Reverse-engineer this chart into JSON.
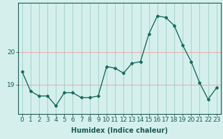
{
  "x": [
    0,
    1,
    2,
    3,
    4,
    5,
    6,
    7,
    8,
    9,
    10,
    11,
    12,
    13,
    14,
    15,
    16,
    17,
    18,
    19,
    20,
    21,
    22,
    23
  ],
  "y": [
    19.4,
    18.8,
    18.65,
    18.65,
    18.35,
    18.75,
    18.75,
    18.6,
    18.6,
    18.65,
    19.55,
    19.5,
    19.35,
    19.65,
    19.7,
    20.55,
    21.1,
    21.05,
    20.8,
    20.2,
    19.7,
    19.05,
    18.55,
    18.9
  ],
  "line_color": "#1a6b5e",
  "marker": "D",
  "markersize": 2.0,
  "linewidth": 1.0,
  "bg_color": "#d5f0ec",
  "hgrid_color": "#e8b0b0",
  "vgrid_color": "#a8d5cd",
  "xlabel": "Humidex (Indice chaleur)",
  "yticks": [
    19,
    20
  ],
  "xticks": [
    0,
    1,
    2,
    3,
    4,
    5,
    6,
    7,
    8,
    9,
    10,
    11,
    12,
    13,
    14,
    15,
    16,
    17,
    18,
    19,
    20,
    21,
    22,
    23
  ],
  "xlabel_fontsize": 7,
  "tick_fontsize": 6.5,
  "tick_color": "#1a5a52",
  "xlim": [
    -0.5,
    23.5
  ],
  "ylim": [
    18.1,
    21.5
  ]
}
